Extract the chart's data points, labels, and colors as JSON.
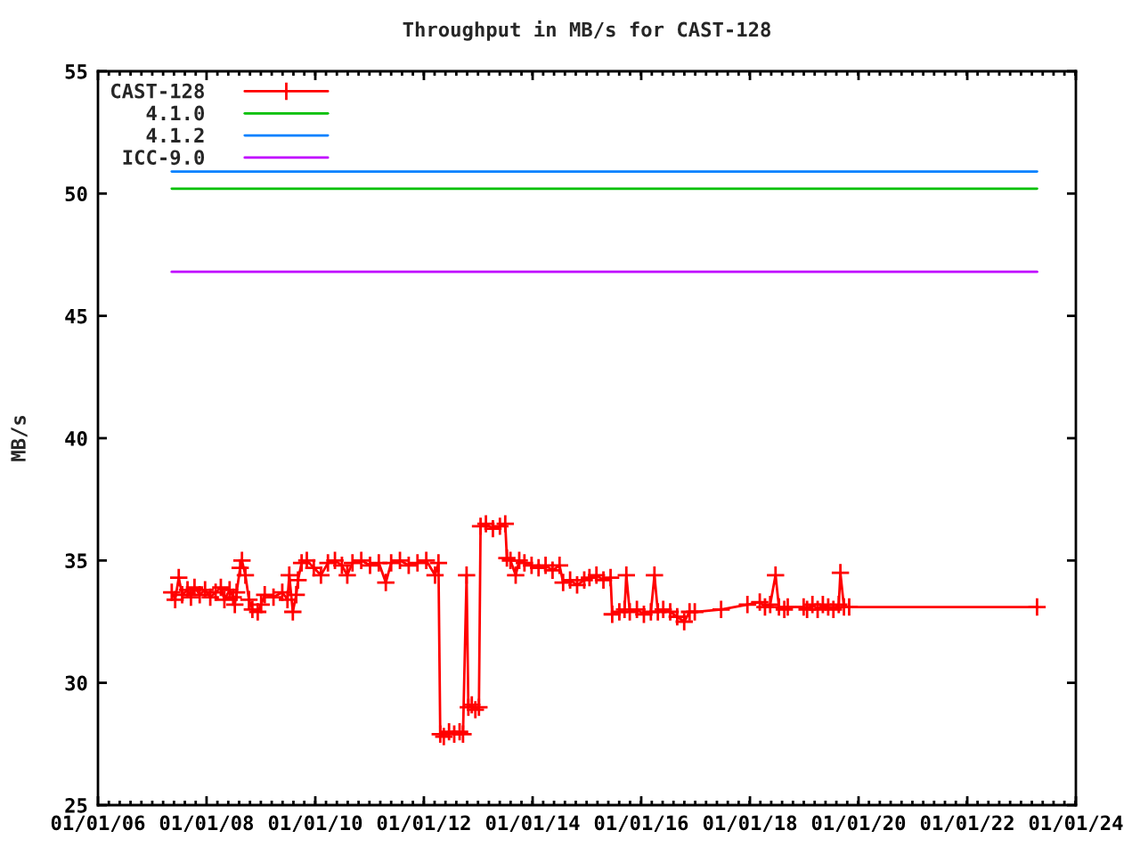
{
  "chart_data": {
    "type": "line",
    "title": "Throughput in MB/s for CAST-128",
    "ylabel": "MB/s",
    "xlim": [
      "2006-01-01",
      "2024-01-01"
    ],
    "xticks": [
      {
        "value": "2006-01-01",
        "label": "01/01/06"
      },
      {
        "value": "2008-01-01",
        "label": "01/01/08"
      },
      {
        "value": "2010-01-01",
        "label": "01/01/10"
      },
      {
        "value": "2012-01-01",
        "label": "01/01/12"
      },
      {
        "value": "2014-01-01",
        "label": "01/01/14"
      },
      {
        "value": "2016-01-01",
        "label": "01/01/16"
      },
      {
        "value": "2018-01-01",
        "label": "01/01/18"
      },
      {
        "value": "2020-01-01",
        "label": "01/01/20"
      },
      {
        "value": "2022-01-01",
        "label": "01/01/22"
      },
      {
        "value": "2024-01-01",
        "label": "01/01/24"
      }
    ],
    "ylim": [
      25,
      55
    ],
    "yticks": [
      25,
      30,
      35,
      40,
      45,
      50,
      55
    ],
    "grid": false,
    "legend": "top left",
    "series": [
      {
        "name": "CAST-128",
        "color": "#ff0000",
        "marker": "cross",
        "x": [
          "2007-05-12",
          "2007-06-04",
          "2007-06-28",
          "2007-07-21",
          "2007-08-26",
          "2007-09-18",
          "2007-10-12",
          "2007-11-16",
          "2007-12-22",
          "2008-01-26",
          "2008-03-02",
          "2008-04-06",
          "2008-04-30",
          "2008-06-04",
          "2008-06-28",
          "2008-07-09",
          "2008-07-21",
          "2008-08-14",
          "2008-08-26",
          "2008-09-18",
          "2008-10-12",
          "2008-11-04",
          "2008-12-10",
          "2009-01-02",
          "2009-01-26",
          "2009-03-26",
          "2009-05-24",
          "2009-06-28",
          "2009-07-10",
          "2009-08-03",
          "2009-08-26",
          "2009-09-07",
          "2009-10-01",
          "2009-11-05",
          "2009-12-22",
          "2010-02-08",
          "2010-03-27",
          "2010-05-13",
          "2010-06-29",
          "2010-08-04",
          "2010-09-08",
          "2010-11-06",
          "2011-01-04",
          "2011-03-04",
          "2011-04-20",
          "2011-05-26",
          "2011-07-24",
          "2011-09-21",
          "2011-11-19",
          "2012-01-17",
          "2012-03-16",
          "2012-04-08",
          "2012-04-20",
          "2012-05-14",
          "2012-06-18",
          "2012-07-23",
          "2012-08-28",
          "2012-09-20",
          "2012-10-14",
          "2012-10-26",
          "2012-11-18",
          "2012-12-12",
          "2013-01-05",
          "2013-01-16",
          "2013-02-21",
          "2013-04-09",
          "2013-05-26",
          "2013-07-01",
          "2013-07-12",
          "2013-08-05",
          "2013-09-09",
          "2013-10-03",
          "2013-11-07",
          "2013-12-25",
          "2014-02-10",
          "2014-03-29",
          "2014-05-15",
          "2014-07-01",
          "2014-07-25",
          "2014-09-10",
          "2014-10-27",
          "2014-12-14",
          "2015-01-18",
          "2015-03-06",
          "2015-04-22",
          "2015-06-09",
          "2015-06-20",
          "2015-08-07",
          "2015-09-11",
          "2015-09-23",
          "2015-10-16",
          "2015-12-03",
          "2016-01-19",
          "2016-03-06",
          "2016-03-30",
          "2016-04-22",
          "2016-05-28",
          "2016-07-14",
          "2016-08-30",
          "2016-10-16",
          "2016-11-21",
          "2016-12-26",
          "2017-06-21",
          "2017-12-15",
          "2018-03-08",
          "2018-04-12",
          "2018-05-17",
          "2018-06-22",
          "2018-07-15",
          "2018-08-20",
          "2018-09-12",
          "2018-12-28",
          "2019-01-20",
          "2019-02-25",
          "2019-04-01",
          "2019-05-06",
          "2019-06-11",
          "2019-07-16",
          "2019-08-21",
          "2019-09-01",
          "2019-09-25",
          "2019-10-30",
          "2023-04-15"
        ],
        "values": [
          33.7,
          33.4,
          34.3,
          33.6,
          33.8,
          33.5,
          33.9,
          33.6,
          33.8,
          33.5,
          33.7,
          33.9,
          33.4,
          33.8,
          33.5,
          33.2,
          33.7,
          34.7,
          35.0,
          34.4,
          33.4,
          33.0,
          32.9,
          33.2,
          33.6,
          33.5,
          33.7,
          33.4,
          34.4,
          32.9,
          33.6,
          34.2,
          34.9,
          35.0,
          34.7,
          34.4,
          34.9,
          35.0,
          34.8,
          34.4,
          34.9,
          35.0,
          34.8,
          34.9,
          34.1,
          34.9,
          35.0,
          34.8,
          34.9,
          35.0,
          34.4,
          34.9,
          27.9,
          27.8,
          28.0,
          27.9,
          28.0,
          27.9,
          34.4,
          29.0,
          29.1,
          28.9,
          29.0,
          36.4,
          36.5,
          36.3,
          36.4,
          36.5,
          35.1,
          35.0,
          34.4,
          35.0,
          34.9,
          34.8,
          34.7,
          34.8,
          34.6,
          34.8,
          34.1,
          34.2,
          34.0,
          34.2,
          34.3,
          34.4,
          34.2,
          34.3,
          32.8,
          32.9,
          33.0,
          34.4,
          32.9,
          33.0,
          32.8,
          32.9,
          34.4,
          32.9,
          33.0,
          32.9,
          32.7,
          32.5,
          32.9,
          32.9,
          33.0,
          33.2,
          33.3,
          33.1,
          33.2,
          34.4,
          33.1,
          33.0,
          33.1,
          33.1,
          33.0,
          33.2,
          33.0,
          33.2,
          33.1,
          33.0,
          33.2,
          34.5,
          33.1,
          33.1,
          33.1
        ]
      },
      {
        "name": "4.1.0",
        "color": "#00c000",
        "x": [
          "2007-05-12",
          "2023-04-15"
        ],
        "values": [
          50.2,
          50.2
        ]
      },
      {
        "name": "4.1.2",
        "color": "#0080ff",
        "x": [
          "2007-05-12",
          "2023-04-15"
        ],
        "values": [
          50.9,
          50.9
        ]
      },
      {
        "name": "ICC-9.0",
        "color": "#c000ff",
        "x": [
          "2007-05-12",
          "2023-04-15"
        ],
        "values": [
          46.8,
          46.8
        ]
      }
    ]
  }
}
